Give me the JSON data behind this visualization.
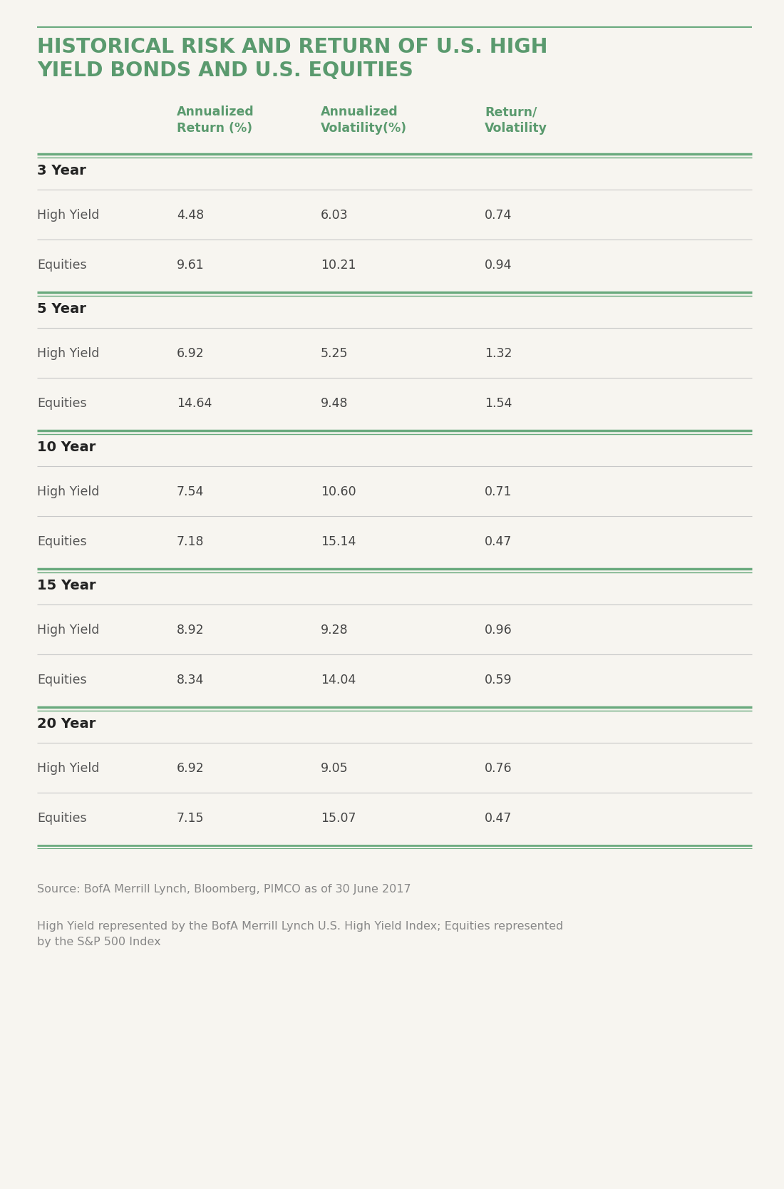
{
  "title_line1": "HISTORICAL RISK AND RETURN OF U.S. HIGH",
  "title_line2": "YIELD BONDS AND U.S. EQUITIES",
  "title_color": "#5a9a6e",
  "background_color": "#f7f5f0",
  "section_line_color": "#6aaa7e",
  "row_line_color": "#c8c8c8",
  "header_color": "#5a9a6e",
  "section_label_color": "#222222",
  "row_label_color": "#555555",
  "value_color": "#444444",
  "footnote_color": "#888888",
  "col_headers": [
    "",
    "Annualized\nReturn (%)",
    "Annualized\nVolatility(%)",
    "Return/\nVolatility"
  ],
  "sections": [
    {
      "label": "3 Year",
      "rows": [
        {
          "label": "High Yield",
          "values": [
            "4.48",
            "6.03",
            "0.74"
          ]
        },
        {
          "label": "Equities",
          "values": [
            "9.61",
            "10.21",
            "0.94"
          ]
        }
      ]
    },
    {
      "label": "5 Year",
      "rows": [
        {
          "label": "High Yield",
          "values": [
            "6.92",
            "5.25",
            "1.32"
          ]
        },
        {
          "label": "Equities",
          "values": [
            "14.64",
            "9.48",
            "1.54"
          ]
        }
      ]
    },
    {
      "label": "10 Year",
      "rows": [
        {
          "label": "High Yield",
          "values": [
            "7.54",
            "10.60",
            "0.71"
          ]
        },
        {
          "label": "Equities",
          "values": [
            "7.18",
            "15.14",
            "0.47"
          ]
        }
      ]
    },
    {
      "label": "15 Year",
      "rows": [
        {
          "label": "High Yield",
          "values": [
            "8.92",
            "9.28",
            "0.96"
          ]
        },
        {
          "label": "Equities",
          "values": [
            "8.34",
            "14.04",
            "0.59"
          ]
        }
      ]
    },
    {
      "label": "20 Year",
      "rows": [
        {
          "label": "High Yield",
          "values": [
            "6.92",
            "9.05",
            "0.76"
          ]
        },
        {
          "label": "Equities",
          "values": [
            "7.15",
            "15.07",
            "0.47"
          ]
        }
      ]
    }
  ],
  "footnote1": "Source: BofA Merrill Lynch, Bloomberg, PIMCO as of 30 June 2017",
  "footnote2": "High Yield represented by the BofA Merrill Lynch U.S. High Yield Index; Equities represented\nby the S&P 500 Index"
}
